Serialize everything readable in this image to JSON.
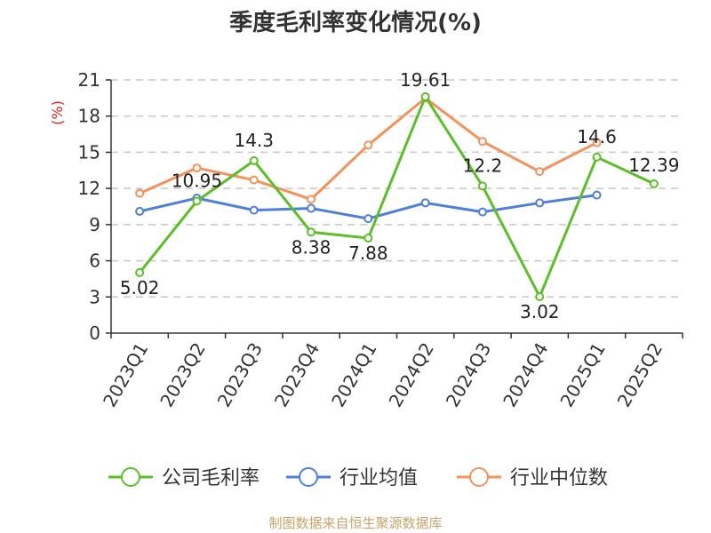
{
  "chart_data": {
    "type": "line",
    "title": "季度毛利率变化情况(%)",
    "ylabel": "(%)",
    "xlabel": "",
    "ylim": [
      0,
      21
    ],
    "yticks": [
      0,
      3,
      6,
      9,
      12,
      15,
      18,
      21
    ],
    "grid": true,
    "legend_position": "bottom",
    "categories": [
      "2023Q1",
      "2023Q2",
      "2023Q3",
      "2023Q4",
      "2024Q1",
      "2024Q2",
      "2024Q3",
      "2024Q4",
      "2025Q1",
      "2025Q2"
    ],
    "series": [
      {
        "name": "公司毛利率",
        "color": "#5cbf2a",
        "values": [
          5.02,
          10.95,
          14.3,
          8.38,
          7.88,
          19.61,
          12.2,
          3.02,
          14.6,
          12.39
        ],
        "labels": [
          "5.02",
          "10.95",
          "14.3",
          "8.38",
          "7.88",
          "19.61",
          "12.2",
          "3.02",
          "14.6",
          "12.39"
        ]
      },
      {
        "name": "行业均值",
        "color": "#4f7fdc",
        "values": [
          10.1,
          11.2,
          10.2,
          10.35,
          9.5,
          10.8,
          10.05,
          10.8,
          11.45,
          null
        ]
      },
      {
        "name": "行业中位数",
        "color": "#f4925c",
        "values": [
          11.6,
          13.7,
          12.7,
          11.1,
          15.6,
          19.5,
          15.9,
          13.4,
          15.8,
          null
        ]
      }
    ],
    "source": "制图数据来自恒生聚源数据库"
  }
}
